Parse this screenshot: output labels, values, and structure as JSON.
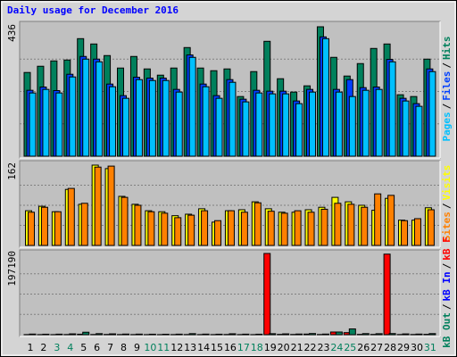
{
  "chart_data": [
    {
      "type": "bar",
      "title": "Daily usage for December 2016",
      "ylim": [
        0,
        436
      ],
      "yticks": [
        436
      ],
      "legend_separator": "/",
      "series": [
        {
          "name": "Hits",
          "color": "#00805c",
          "values": [
            282,
            303,
            321,
            324,
            396,
            378,
            339,
            297,
            336,
            294,
            273,
            297,
            366,
            297,
            288,
            294,
            201,
            285,
            387,
            261,
            216,
            237,
            436,
            333,
            270,
            312,
            363,
            378,
            207,
            201,
            327
          ]
        },
        {
          "name": "Files",
          "color": "#0040ff",
          "values": [
            222,
            233,
            221,
            276,
            336,
            327,
            243,
            204,
            266,
            263,
            263,
            225,
            341,
            243,
            204,
            258,
            192,
            222,
            219,
            219,
            186,
            225,
            402,
            225,
            258,
            231,
            233,
            326,
            195,
            177,
            294
          ]
        },
        {
          "name": "Pages",
          "color": "#00c0ff",
          "values": [
            213,
            225,
            213,
            267,
            327,
            318,
            234,
            195,
            258,
            255,
            255,
            216,
            333,
            234,
            195,
            249,
            183,
            213,
            210,
            210,
            177,
            216,
            396,
            216,
            201,
            222,
            225,
            318,
            186,
            168,
            285
          ]
        }
      ]
    },
    {
      "type": "bar",
      "ylim": [
        0,
        162
      ],
      "yticks": [
        162
      ],
      "legend_separator": "/",
      "series": [
        {
          "name": "Visits",
          "color": "#ffff00",
          "values": [
            70,
            79,
            68,
            113,
            83,
            162,
            155,
            99,
            83,
            70,
            68,
            60,
            63,
            74,
            47,
            70,
            72,
            88,
            74,
            67,
            67,
            72,
            77,
            97,
            88,
            81,
            71,
            95,
            51,
            51,
            76
          ]
        },
        {
          "name": "Sites",
          "color": "#ff8000",
          "values": [
            67,
            77,
            68,
            115,
            85,
            158,
            160,
            97,
            81,
            68,
            65,
            56,
            61,
            70,
            50,
            70,
            67,
            86,
            69,
            65,
            70,
            67,
            73,
            85,
            83,
            77,
            104,
            101,
            50,
            54,
            72
          ]
        }
      ]
    },
    {
      "type": "bar",
      "ylim": [
        0,
        197190
      ],
      "yticks": [
        197190
      ],
      "legend_separator": "/",
      "categories": [
        "1",
        "2",
        "3",
        "4",
        "5",
        "6",
        "7",
        "8",
        "9",
        "10",
        "11",
        "12",
        "13",
        "14",
        "15",
        "16",
        "17",
        "18",
        "19",
        "20",
        "21",
        "22",
        "23",
        "24",
        "25",
        "26",
        "27",
        "28",
        "29",
        "30",
        "31"
      ],
      "category_colors": [
        "#000000",
        "#000000",
        "#00805c",
        "#00805c",
        "#000000",
        "#000000",
        "#000000",
        "#000000",
        "#000000",
        "#00805c",
        "#00805c",
        "#000000",
        "#000000",
        "#000000",
        "#000000",
        "#000000",
        "#00805c",
        "#00805c",
        "#000000",
        "#000000",
        "#000000",
        "#000000",
        "#000000",
        "#00805c",
        "#00805c",
        "#000000",
        "#000000",
        "#000000",
        "#000000",
        "#000000",
        "#00805c"
      ],
      "series": [
        {
          "name": "kB F",
          "color": "#ff0000",
          "values": [
            300,
            250,
            200,
            400,
            1200,
            500,
            600,
            400,
            300,
            200,
            200,
            300,
            400,
            300,
            250,
            500,
            300,
            200,
            197190,
            800,
            600,
            1500,
            500,
            6500,
            5000,
            800,
            700,
            195600,
            400,
            500,
            900
          ]
        },
        {
          "name": "kB In",
          "color": "#0000ff",
          "values": [
            100,
            100,
            100,
            100,
            150,
            100,
            100,
            100,
            100,
            100,
            100,
            100,
            100,
            100,
            100,
            100,
            100,
            100,
            150,
            100,
            100,
            100,
            100,
            200,
            200,
            100,
            100,
            150,
            100,
            100,
            100
          ]
        },
        {
          "name": "kB Out",
          "color": "#00805c",
          "values": [
            1500,
            1200,
            1300,
            2000,
            6000,
            2500,
            2000,
            1500,
            1400,
            1200,
            1100,
            1300,
            2500,
            1400,
            1200,
            2200,
            1300,
            1200,
            2400,
            2000,
            1600,
            2800,
            1500,
            6500,
            14000,
            2600,
            2400,
            2700,
            1900,
            1500,
            2600
          ]
        }
      ]
    }
  ]
}
